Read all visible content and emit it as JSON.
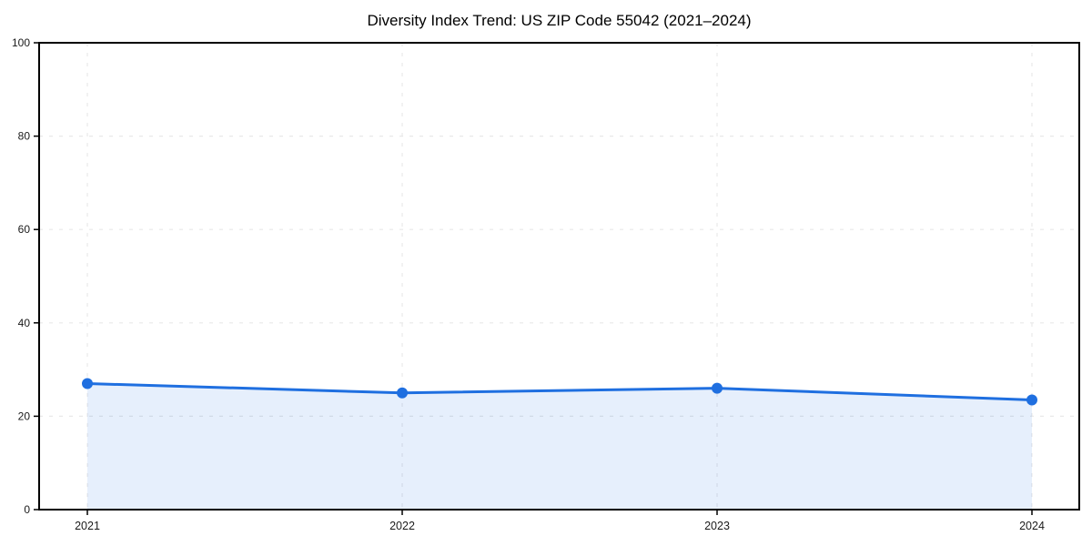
{
  "chart_data": {
    "type": "area",
    "title": "Diversity Index Trend: US ZIP Code 55042 (2021–2024)",
    "x": [
      2021,
      2022,
      2023,
      2024
    ],
    "x_tick_labels": [
      "2021",
      "2022",
      "2023",
      "2024"
    ],
    "series": [
      {
        "name": "Diversity Index",
        "values": [
          27,
          25,
          26,
          23.5
        ]
      }
    ],
    "xlabel": "",
    "ylabel": "",
    "ylim": [
      0,
      100
    ],
    "yticks": [
      0,
      20,
      40,
      60,
      80,
      100
    ],
    "grid": true,
    "grid_style": "dashed",
    "legend": false,
    "colors": {
      "line": "#1f6fe0",
      "marker": "#1f6fe0",
      "fill": "rgba(31,111,224,0.11)",
      "grid": "#e8e8e8",
      "axis_border": "#000000",
      "tick_label": "#1a1a1a",
      "background": "#ffffff"
    }
  }
}
